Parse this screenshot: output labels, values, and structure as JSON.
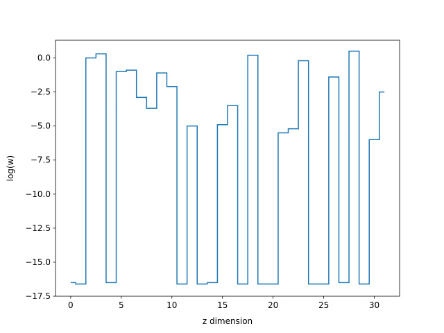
{
  "chart_data": {
    "type": "line",
    "drawstyle": "steps-mid",
    "title": "",
    "xlabel": "z dimension",
    "ylabel": "log(w)",
    "xlim": [
      -1.5,
      32.5
    ],
    "ylim": [
      -17.5,
      1.3
    ],
    "xticks": [
      0,
      5,
      10,
      15,
      20,
      25,
      30
    ],
    "yticks": [
      0.0,
      -2.5,
      -5.0,
      -7.5,
      -10.0,
      -12.5,
      -15.0,
      -17.5
    ],
    "xtick_labels": [
      "0",
      "5",
      "10",
      "15",
      "20",
      "25",
      "30"
    ],
    "ytick_labels": [
      "0.0",
      "−2.5",
      "−5.0",
      "−7.5",
      "−10.0",
      "−12.5",
      "−15.0",
      "−17.5"
    ],
    "grid": false,
    "legend": "none",
    "series": [
      {
        "color": "#1f77b4",
        "x": [
          0,
          1,
          2,
          3,
          4,
          5,
          6,
          7,
          8,
          9,
          10,
          11,
          12,
          13,
          14,
          15,
          16,
          17,
          18,
          19,
          20,
          21,
          22,
          23,
          24,
          25,
          26,
          27,
          28,
          29,
          30,
          31
        ],
        "y": [
          -16.5,
          -16.6,
          0.0,
          0.3,
          -16.5,
          -1.0,
          -0.9,
          -2.9,
          -3.7,
          -1.1,
          -2.1,
          -16.6,
          -5.0,
          -16.6,
          -16.5,
          -4.9,
          -3.5,
          -16.6,
          0.2,
          -16.6,
          -16.6,
          -5.5,
          -5.2,
          -0.2,
          -16.6,
          -16.6,
          -1.4,
          -16.5,
          0.5,
          -16.6,
          -6.0,
          -2.5
        ]
      }
    ]
  }
}
